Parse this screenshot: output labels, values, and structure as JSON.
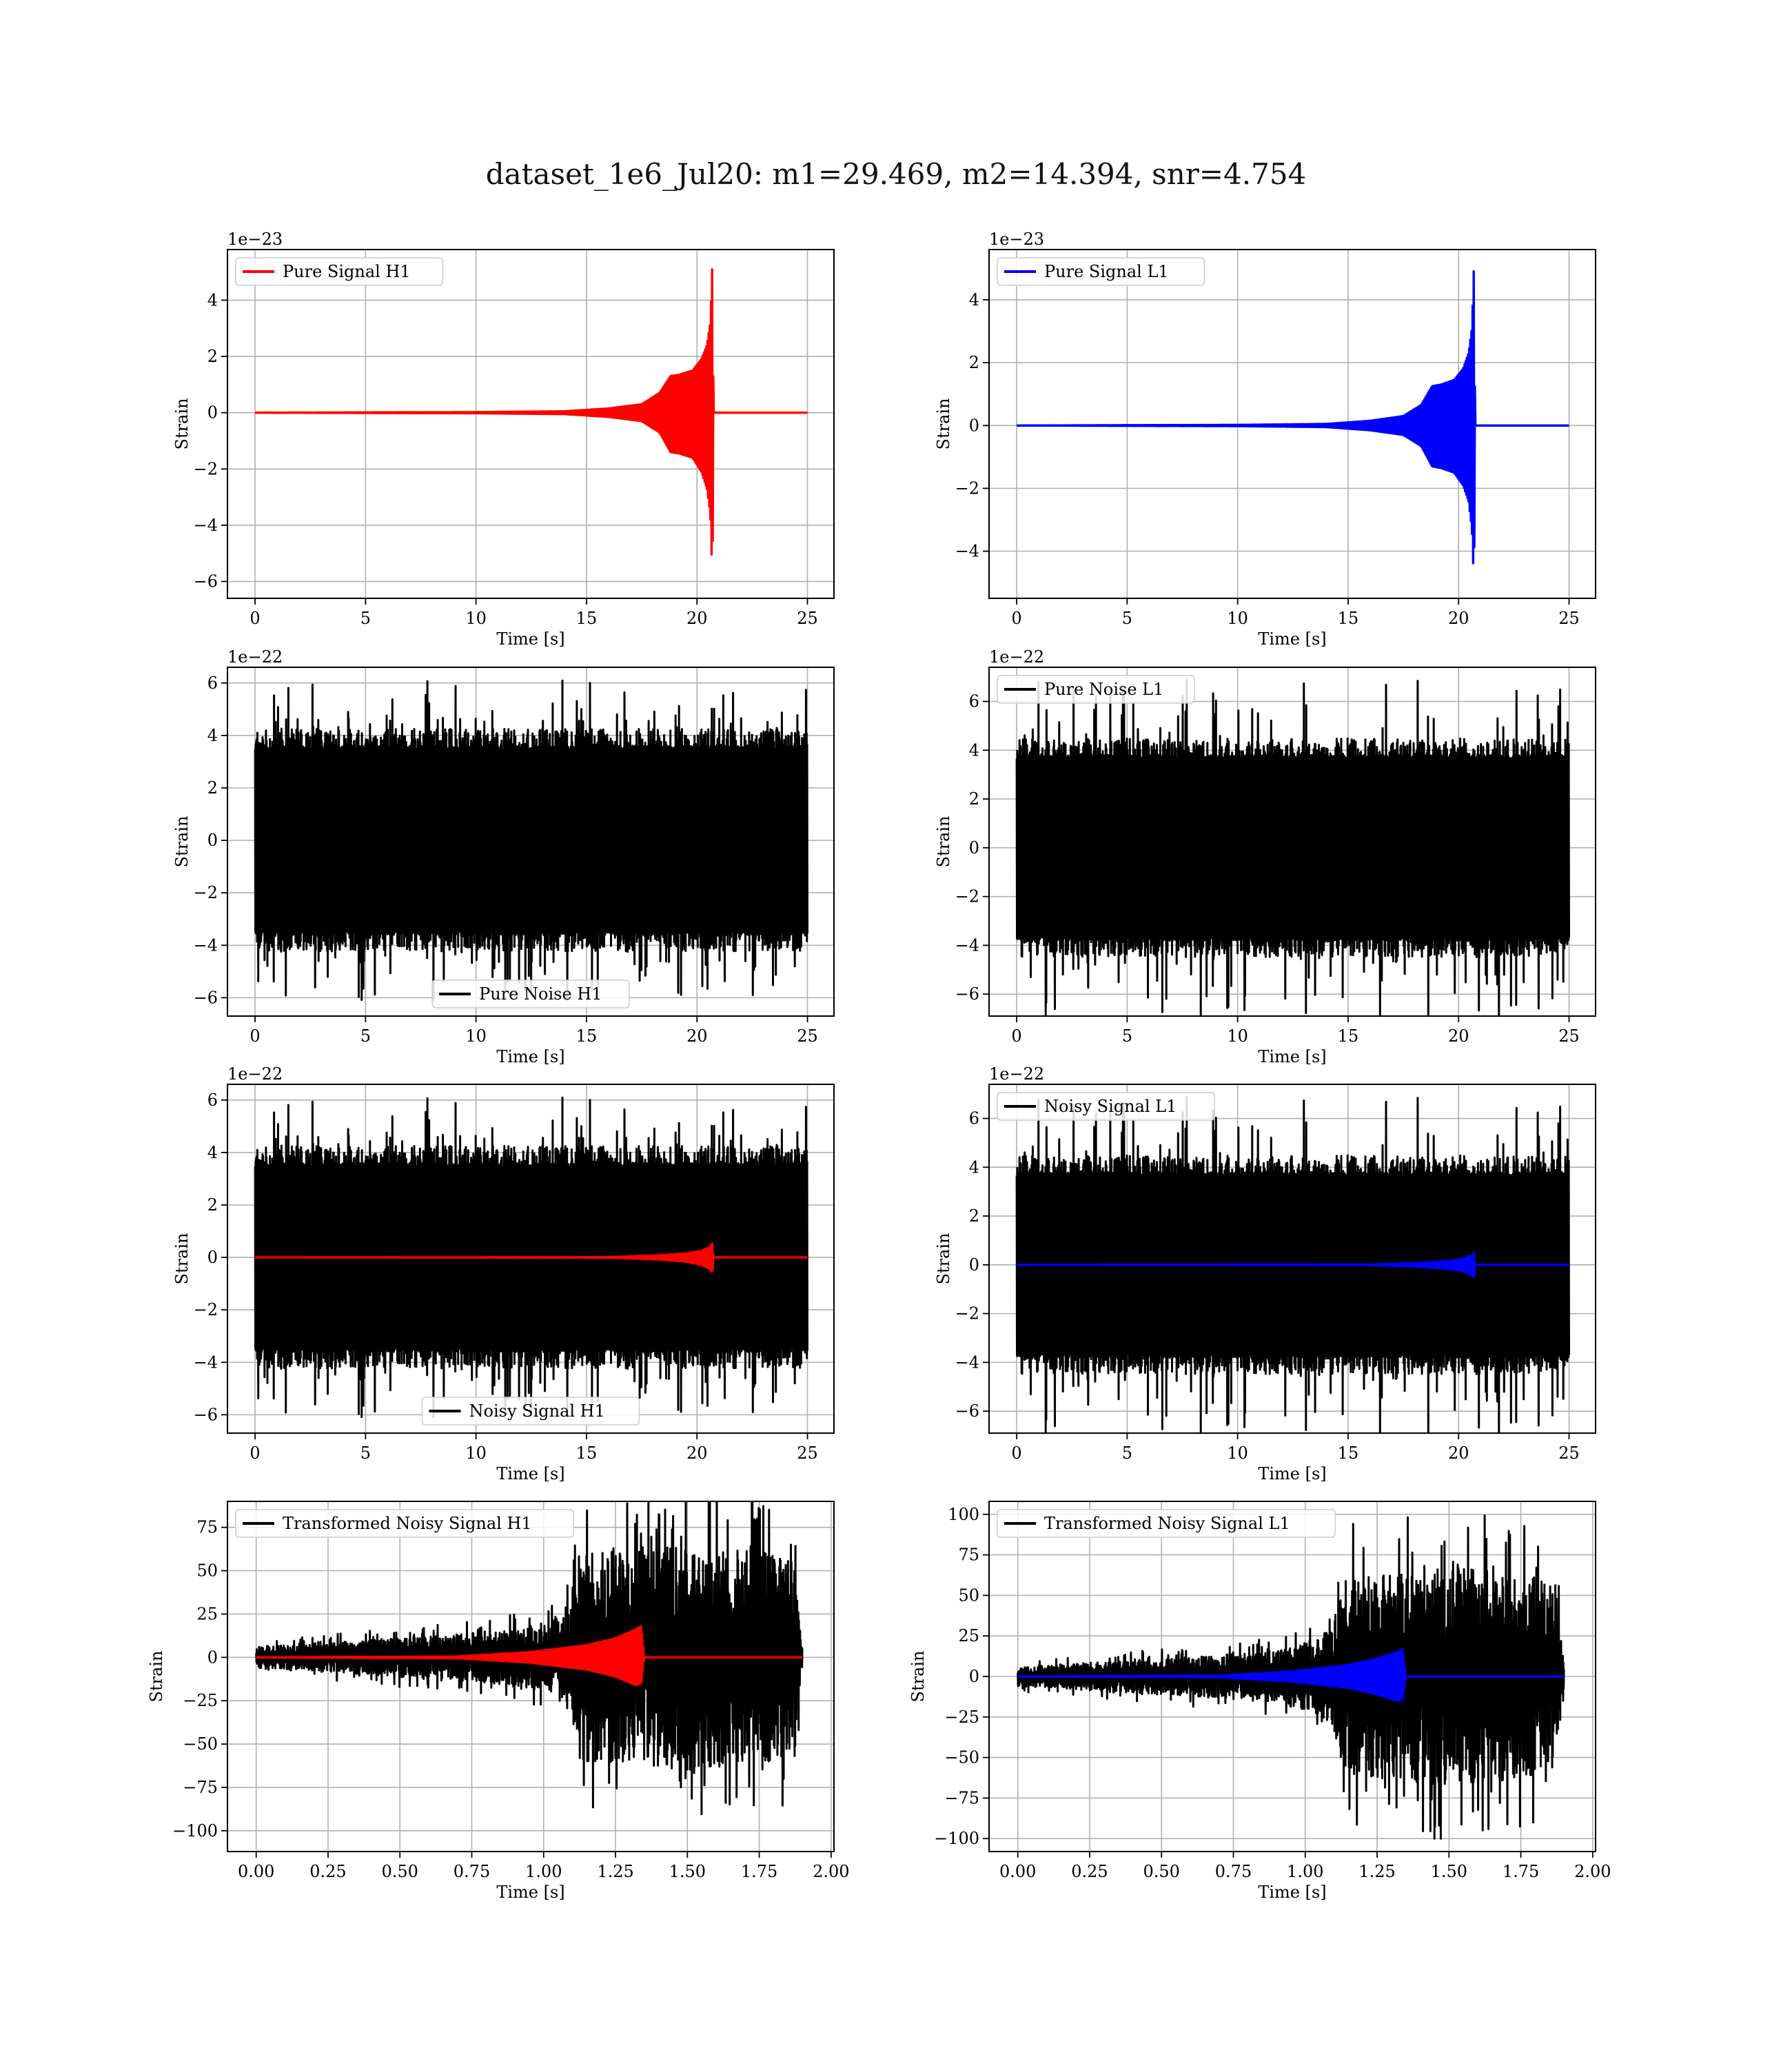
{
  "figure": {
    "title": "dataset_1e6_Jul20: m1=29.469, m2=14.394, snr=4.754"
  },
  "chart_data": [
    {
      "type": "line",
      "panel": "row1-left",
      "xlabel": "Time [s]",
      "ylabel": "Strain",
      "offset_text": "1e−23",
      "xlim": [
        -1.25,
        26.2
      ],
      "ylim": [
        -6.6,
        5.8
      ],
      "xticks": [
        0,
        5,
        10,
        15,
        20,
        25
      ],
      "xtick_labels": [
        "0",
        "5",
        "10",
        "15",
        "20",
        "25"
      ],
      "yticks": [
        4,
        2,
        0,
        -2,
        -4,
        -6
      ],
      "ytick_labels": [
        "4",
        "2",
        "0",
        "−2",
        "−4",
        "−6"
      ],
      "grid": true,
      "legend_loc": "upper-left",
      "series": [
        {
          "name": "Pure Signal H1",
          "color": "#ff0000",
          "kind": "chirp",
          "x": [
            0,
            10,
            14,
            16,
            17.5,
            18.3,
            18.8,
            19.2,
            19.8,
            20.2,
            20.45,
            20.6,
            20.7,
            20.75,
            25
          ],
          "upper": [
            0,
            0.02,
            0.05,
            0.15,
            0.3,
            0.7,
            1.3,
            1.35,
            1.5,
            1.9,
            2.4,
            3.2,
            5.4,
            0,
            0
          ],
          "lower": [
            0,
            -0.02,
            -0.05,
            -0.15,
            -0.3,
            -0.7,
            -1.4,
            -1.45,
            -1.6,
            -2.1,
            -2.7,
            -3.6,
            -6.0,
            0,
            0
          ]
        }
      ]
    },
    {
      "type": "line",
      "panel": "row1-right",
      "xlabel": "Time [s]",
      "ylabel": "Strain",
      "offset_text": "1e−23",
      "xlim": [
        -1.25,
        26.2
      ],
      "ylim": [
        -5.5,
        5.6
      ],
      "xticks": [
        0,
        5,
        10,
        15,
        20,
        25
      ],
      "xtick_labels": [
        "0",
        "5",
        "10",
        "15",
        "20",
        "25"
      ],
      "yticks": [
        4,
        2,
        0,
        -2,
        -4
      ],
      "ytick_labels": [
        "4",
        "2",
        "0",
        "−2",
        "−4"
      ],
      "grid": true,
      "legend_loc": "upper-left",
      "series": [
        {
          "name": "Pure Signal L1",
          "color": "#0000ff",
          "kind": "chirp",
          "x": [
            0,
            10,
            14,
            16,
            17.5,
            18.3,
            18.8,
            19.2,
            19.8,
            20.2,
            20.45,
            20.6,
            20.7,
            20.75,
            25
          ],
          "upper": [
            0,
            0.02,
            0.05,
            0.15,
            0.3,
            0.65,
            1.25,
            1.3,
            1.45,
            1.8,
            2.3,
            3.1,
            5.2,
            0,
            0
          ],
          "lower": [
            0,
            -0.02,
            -0.05,
            -0.15,
            -0.3,
            -0.65,
            -1.3,
            -1.35,
            -1.5,
            -1.9,
            -2.4,
            -3.3,
            -5.1,
            0,
            0
          ]
        }
      ]
    },
    {
      "type": "line",
      "panel": "row2-left",
      "xlabel": "Time [s]",
      "ylabel": "Strain",
      "offset_text": "1e−22",
      "xlim": [
        -1.25,
        26.2
      ],
      "ylim": [
        -6.7,
        6.6
      ],
      "xticks": [
        0,
        5,
        10,
        15,
        20,
        25
      ],
      "xtick_labels": [
        "0",
        "5",
        "10",
        "15",
        "20",
        "25"
      ],
      "yticks": [
        6,
        4,
        2,
        0,
        -2,
        -4,
        -6
      ],
      "ytick_labels": [
        "6",
        "4",
        "2",
        "0",
        "−2",
        "−4",
        "−6"
      ],
      "grid": true,
      "legend_loc": "lower-center",
      "series": [
        {
          "name": "Pure Noise H1",
          "color": "#000000",
          "kind": "noise",
          "t_range": [
            0,
            25
          ],
          "core": 3.6,
          "peak": 6.1,
          "seed": 11
        }
      ]
    },
    {
      "type": "line",
      "panel": "row2-right",
      "xlabel": "Time [s]",
      "ylabel": "Strain",
      "offset_text": "1e−22",
      "xlim": [
        -1.25,
        26.2
      ],
      "ylim": [
        -6.9,
        7.4
      ],
      "xticks": [
        0,
        5,
        10,
        15,
        20,
        25
      ],
      "xtick_labels": [
        "0",
        "5",
        "10",
        "15",
        "20",
        "25"
      ],
      "yticks": [
        6,
        4,
        2,
        0,
        -2,
        -4,
        -6
      ],
      "ytick_labels": [
        "6",
        "4",
        "2",
        "0",
        "−2",
        "−4",
        "−6"
      ],
      "grid": true,
      "legend_loc": "upper-left",
      "series": [
        {
          "name": "Pure Noise L1",
          "color": "#000000",
          "kind": "noise",
          "t_range": [
            0,
            25
          ],
          "core": 3.8,
          "peak": 7.1,
          "seed": 23
        }
      ]
    },
    {
      "type": "line",
      "panel": "row3-left",
      "xlabel": "Time [s]",
      "ylabel": "Strain",
      "offset_text": "1e−22",
      "xlim": [
        -1.25,
        26.2
      ],
      "ylim": [
        -6.7,
        6.6
      ],
      "xticks": [
        0,
        5,
        10,
        15,
        20,
        25
      ],
      "xtick_labels": [
        "0",
        "5",
        "10",
        "15",
        "20",
        "25"
      ],
      "yticks": [
        6,
        4,
        2,
        0,
        -2,
        -4,
        -6
      ],
      "ytick_labels": [
        "6",
        "4",
        "2",
        "0",
        "−2",
        "−4",
        "−6"
      ],
      "grid": true,
      "legend_loc": "lower-center",
      "series": [
        {
          "name": "Noisy Signal H1",
          "color": "#000000",
          "kind": "noise",
          "t_range": [
            0,
            25
          ],
          "core": 3.6,
          "peak": 6.1,
          "seed": 11
        },
        {
          "name": "",
          "color": "#ff0000",
          "kind": "chirp",
          "x": [
            0,
            16,
            18.3,
            19.5,
            20.2,
            20.6,
            20.7,
            20.75,
            25
          ],
          "upper": [
            0,
            0.01,
            0.08,
            0.15,
            0.25,
            0.4,
            0.55,
            0,
            0
          ],
          "lower": [
            0,
            -0.01,
            -0.08,
            -0.16,
            -0.28,
            -0.45,
            -0.6,
            0,
            0
          ]
        }
      ]
    },
    {
      "type": "line",
      "panel": "row3-right",
      "xlabel": "Time [s]",
      "ylabel": "Strain",
      "offset_text": "1e−22",
      "xlim": [
        -1.25,
        26.2
      ],
      "ylim": [
        -6.9,
        7.4
      ],
      "xticks": [
        0,
        5,
        10,
        15,
        20,
        25
      ],
      "xtick_labels": [
        "0",
        "5",
        "10",
        "15",
        "20",
        "25"
      ],
      "yticks": [
        6,
        4,
        2,
        0,
        -2,
        -4,
        -6
      ],
      "ytick_labels": [
        "6",
        "4",
        "2",
        "0",
        "−2",
        "−4",
        "−6"
      ],
      "grid": true,
      "legend_loc": "upper-left",
      "series": [
        {
          "name": "Noisy Signal L1",
          "color": "#000000",
          "kind": "noise",
          "t_range": [
            0,
            25
          ],
          "core": 3.8,
          "peak": 7.1,
          "seed": 23
        },
        {
          "name": "",
          "color": "#0000ff",
          "kind": "chirp",
          "x": [
            0,
            16,
            18.3,
            19.5,
            20.2,
            20.6,
            20.7,
            20.75,
            25
          ],
          "upper": [
            0,
            0.01,
            0.08,
            0.15,
            0.25,
            0.38,
            0.5,
            0,
            0
          ],
          "lower": [
            0,
            -0.01,
            -0.08,
            -0.16,
            -0.26,
            -0.42,
            -0.55,
            0,
            0
          ]
        }
      ]
    },
    {
      "type": "line",
      "panel": "row4-left",
      "xlabel": "Time [s]",
      "ylabel": "Strain",
      "offset_text": "",
      "xlim": [
        -0.1,
        2.01
      ],
      "ylim": [
        -112,
        90
      ],
      "xticks": [
        0,
        0.25,
        0.5,
        0.75,
        1.0,
        1.25,
        1.5,
        1.75,
        2.0
      ],
      "xtick_labels": [
        "0.00",
        "0.25",
        "0.50",
        "0.75",
        "1.00",
        "1.25",
        "1.50",
        "1.75",
        "2.00"
      ],
      "yticks": [
        75,
        50,
        25,
        0,
        -25,
        -50,
        -75,
        -100
      ],
      "ytick_labels": [
        "75",
        "50",
        "25",
        "0",
        "−25",
        "−50",
        "−75",
        "−100"
      ],
      "grid": true,
      "legend_loc": "upper-left",
      "series": [
        {
          "name": "Transformed Noisy Signal H1",
          "color": "#000000",
          "kind": "transformed",
          "t_range": [
            0,
            1.9
          ],
          "env_x": [
            0,
            0.3,
            0.6,
            0.9,
            1.05,
            1.1,
            1.12,
            1.5,
            1.8,
            1.87,
            1.9
          ],
          "env": [
            6,
            9,
            12,
            16,
            22,
            30,
            60,
            65,
            60,
            55,
            6
          ],
          "peak": 95,
          "seed": 5
        },
        {
          "name": "",
          "color": "#ff0000",
          "kind": "chirp",
          "x": [
            0,
            0.7,
            0.95,
            1.15,
            1.25,
            1.32,
            1.34,
            1.35,
            1.9
          ],
          "upper": [
            0,
            0.5,
            3,
            7,
            11,
            16,
            18,
            0,
            0
          ],
          "lower": [
            0,
            -0.5,
            -3,
            -7,
            -11,
            -16,
            -15,
            0,
            0
          ]
        }
      ]
    },
    {
      "type": "line",
      "panel": "row4-right",
      "xlabel": "Time [s]",
      "ylabel": "Strain",
      "offset_text": "",
      "xlim": [
        -0.1,
        2.01
      ],
      "ylim": [
        -108,
        108
      ],
      "xticks": [
        0,
        0.25,
        0.5,
        0.75,
        1.0,
        1.25,
        1.5,
        1.75,
        2.0
      ],
      "xtick_labels": [
        "0.00",
        "0.25",
        "0.50",
        "0.75",
        "1.00",
        "1.25",
        "1.50",
        "1.75",
        "2.00"
      ],
      "yticks": [
        100,
        75,
        50,
        25,
        0,
        -25,
        -50,
        -75,
        -100
      ],
      "ytick_labels": [
        "100",
        "75",
        "50",
        "25",
        "0",
        "−25",
        "−50",
        "−75",
        "−100"
      ],
      "grid": true,
      "legend_loc": "upper-left",
      "series": [
        {
          "name": "Transformed Noisy Signal L1",
          "color": "#000000",
          "kind": "transformed",
          "t_range": [
            0,
            1.9
          ],
          "env_x": [
            0,
            0.3,
            0.6,
            0.9,
            1.05,
            1.1,
            1.12,
            1.5,
            1.8,
            1.87,
            1.9
          ],
          "env": [
            6,
            9,
            12,
            16,
            24,
            32,
            60,
            68,
            62,
            58,
            6
          ],
          "peak": 100,
          "seed": 9
        },
        {
          "name": "",
          "color": "#0000ff",
          "kind": "chirp",
          "x": [
            0,
            0.7,
            0.95,
            1.15,
            1.25,
            1.32,
            1.34,
            1.35,
            1.9
          ],
          "upper": [
            0,
            0.5,
            3,
            7,
            11,
            15,
            17,
            0,
            0
          ],
          "lower": [
            0,
            -0.5,
            -3,
            -7,
            -11,
            -15,
            -14,
            0,
            0
          ]
        }
      ]
    }
  ]
}
